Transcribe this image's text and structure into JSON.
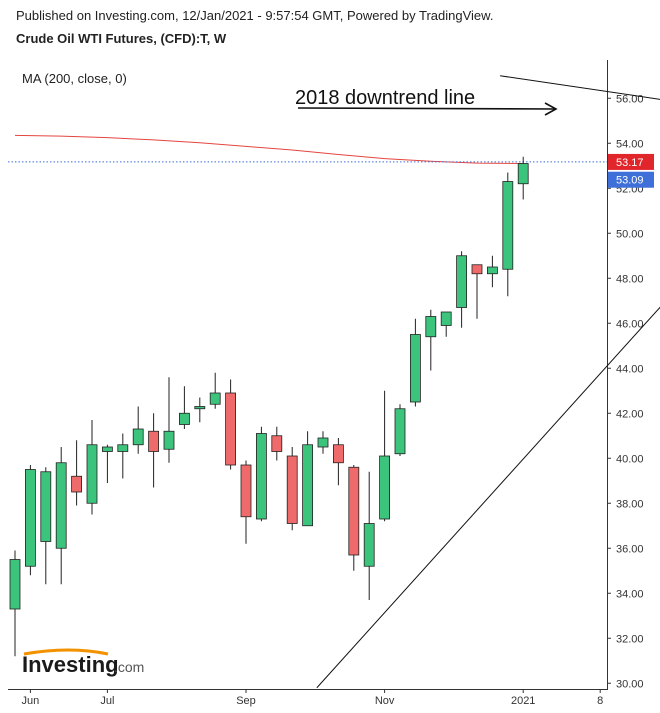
{
  "header": {
    "published": "Published on Investing.com, 12/Jan/2021 - 9:57:54 GMT, Powered by TradingView.",
    "symbol": "Crude Oil WTI Futures, (CFD):T, W"
  },
  "indicator_label": "MA (200, close, 0)",
  "annotation": "2018 downtrend line",
  "logo_text": "Investing",
  "logo_suffix": ".com",
  "colors": {
    "up": "#3cc47c",
    "down": "#ef6b6b",
    "ma": "#e4453f",
    "last_price_badge": "#e0252b",
    "ma_badge": "#3f6fd8",
    "trendline": "#111111",
    "axis": "#333333"
  },
  "chart_data": {
    "type": "candlestick",
    "y_axis": {
      "range": [
        29.7,
        57.7
      ],
      "ticks": [
        "30.00",
        "32.00",
        "34.00",
        "36.00",
        "38.00",
        "40.00",
        "42.00",
        "44.00",
        "46.00",
        "48.00",
        "50.00",
        "52.00",
        "54.00",
        "56.00"
      ],
      "side": "right"
    },
    "x_axis": {
      "ticks": [
        {
          "label": "Jun",
          "bar": 1
        },
        {
          "label": "Jul",
          "bar": 6
        },
        {
          "label": "Sep",
          "bar": 15
        },
        {
          "label": "Nov",
          "bar": 24
        },
        {
          "label": "2021",
          "bar": 33
        },
        {
          "label": "8",
          "bar": 38
        }
      ]
    },
    "price_badges": [
      {
        "label": "53.17",
        "value": 53.17,
        "kind": "last_price"
      },
      {
        "label": "53.09",
        "value": 53.09,
        "kind": "ma"
      }
    ],
    "candles": [
      {
        "o": 33.3,
        "h": 35.9,
        "l": 31.2,
        "c": 35.5
      },
      {
        "o": 35.2,
        "h": 39.7,
        "l": 34.8,
        "c": 39.5
      },
      {
        "o": 36.3,
        "h": 39.6,
        "l": 34.4,
        "c": 39.4
      },
      {
        "o": 36.0,
        "h": 40.5,
        "l": 34.4,
        "c": 39.8
      },
      {
        "o": 39.2,
        "h": 40.8,
        "l": 37.9,
        "c": 38.5
      },
      {
        "o": 38.0,
        "h": 41.7,
        "l": 37.5,
        "c": 40.6
      },
      {
        "o": 40.3,
        "h": 40.6,
        "l": 38.9,
        "c": 40.5
      },
      {
        "o": 40.3,
        "h": 41.1,
        "l": 39.1,
        "c": 40.6
      },
      {
        "o": 40.6,
        "h": 42.3,
        "l": 40.2,
        "c": 41.3
      },
      {
        "o": 41.2,
        "h": 42.0,
        "l": 38.7,
        "c": 40.3
      },
      {
        "o": 40.4,
        "h": 43.6,
        "l": 39.8,
        "c": 41.2
      },
      {
        "o": 41.5,
        "h": 43.2,
        "l": 41.3,
        "c": 42.0
      },
      {
        "o": 42.2,
        "h": 42.7,
        "l": 41.6,
        "c": 42.3
      },
      {
        "o": 42.4,
        "h": 43.8,
        "l": 42.2,
        "c": 42.9
      },
      {
        "o": 42.9,
        "h": 43.5,
        "l": 39.5,
        "c": 39.7
      },
      {
        "o": 39.7,
        "h": 39.9,
        "l": 36.2,
        "c": 37.4
      },
      {
        "o": 37.3,
        "h": 41.4,
        "l": 37.2,
        "c": 41.1
      },
      {
        "o": 41.0,
        "h": 41.4,
        "l": 39.9,
        "c": 40.3
      },
      {
        "o": 40.1,
        "h": 40.5,
        "l": 36.8,
        "c": 37.1
      },
      {
        "o": 37.0,
        "h": 41.2,
        "l": 37.0,
        "c": 40.6
      },
      {
        "o": 40.5,
        "h": 41.2,
        "l": 40.2,
        "c": 40.9
      },
      {
        "o": 40.6,
        "h": 40.9,
        "l": 38.8,
        "c": 39.8
      },
      {
        "o": 39.6,
        "h": 39.7,
        "l": 35.0,
        "c": 35.7
      },
      {
        "o": 35.2,
        "h": 39.4,
        "l": 33.7,
        "c": 37.1
      },
      {
        "o": 37.3,
        "h": 43.0,
        "l": 37.2,
        "c": 40.1
      },
      {
        "o": 40.2,
        "h": 42.4,
        "l": 40.1,
        "c": 42.2
      },
      {
        "o": 42.5,
        "h": 46.2,
        "l": 42.3,
        "c": 45.5
      },
      {
        "o": 45.4,
        "h": 46.6,
        "l": 43.9,
        "c": 46.3
      },
      {
        "o": 45.9,
        "h": 46.5,
        "l": 45.4,
        "c": 46.5
      },
      {
        "o": 46.7,
        "h": 49.2,
        "l": 45.8,
        "c": 49.0
      },
      {
        "o": 48.6,
        "h": 48.6,
        "l": 46.2,
        "c": 48.2
      },
      {
        "o": 48.2,
        "h": 49.0,
        "l": 47.6,
        "c": 48.5
      },
      {
        "o": 48.4,
        "h": 52.7,
        "l": 47.2,
        "c": 52.3
      },
      {
        "o": 52.2,
        "h": 53.4,
        "l": 51.5,
        "c": 53.1
      }
    ],
    "ma200": [
      [
        0,
        54.35
      ],
      [
        3,
        54.32
      ],
      [
        6,
        54.25
      ],
      [
        9,
        54.15
      ],
      [
        12,
        54.02
      ],
      [
        15,
        53.86
      ],
      [
        18,
        53.7
      ],
      [
        21,
        53.5
      ],
      [
        24,
        53.32
      ],
      [
        27,
        53.2
      ],
      [
        30,
        53.12
      ],
      [
        33,
        53.1
      ]
    ],
    "trendlines": [
      {
        "name": "2018 downtrend line",
        "from": [
          31.5,
          57.0
        ],
        "to": [
          42.4,
          55.9
        ]
      },
      {
        "name": "uptrend line",
        "from": [
          19.6,
          29.8
        ],
        "to": [
          42.4,
          47.1
        ]
      }
    ]
  }
}
